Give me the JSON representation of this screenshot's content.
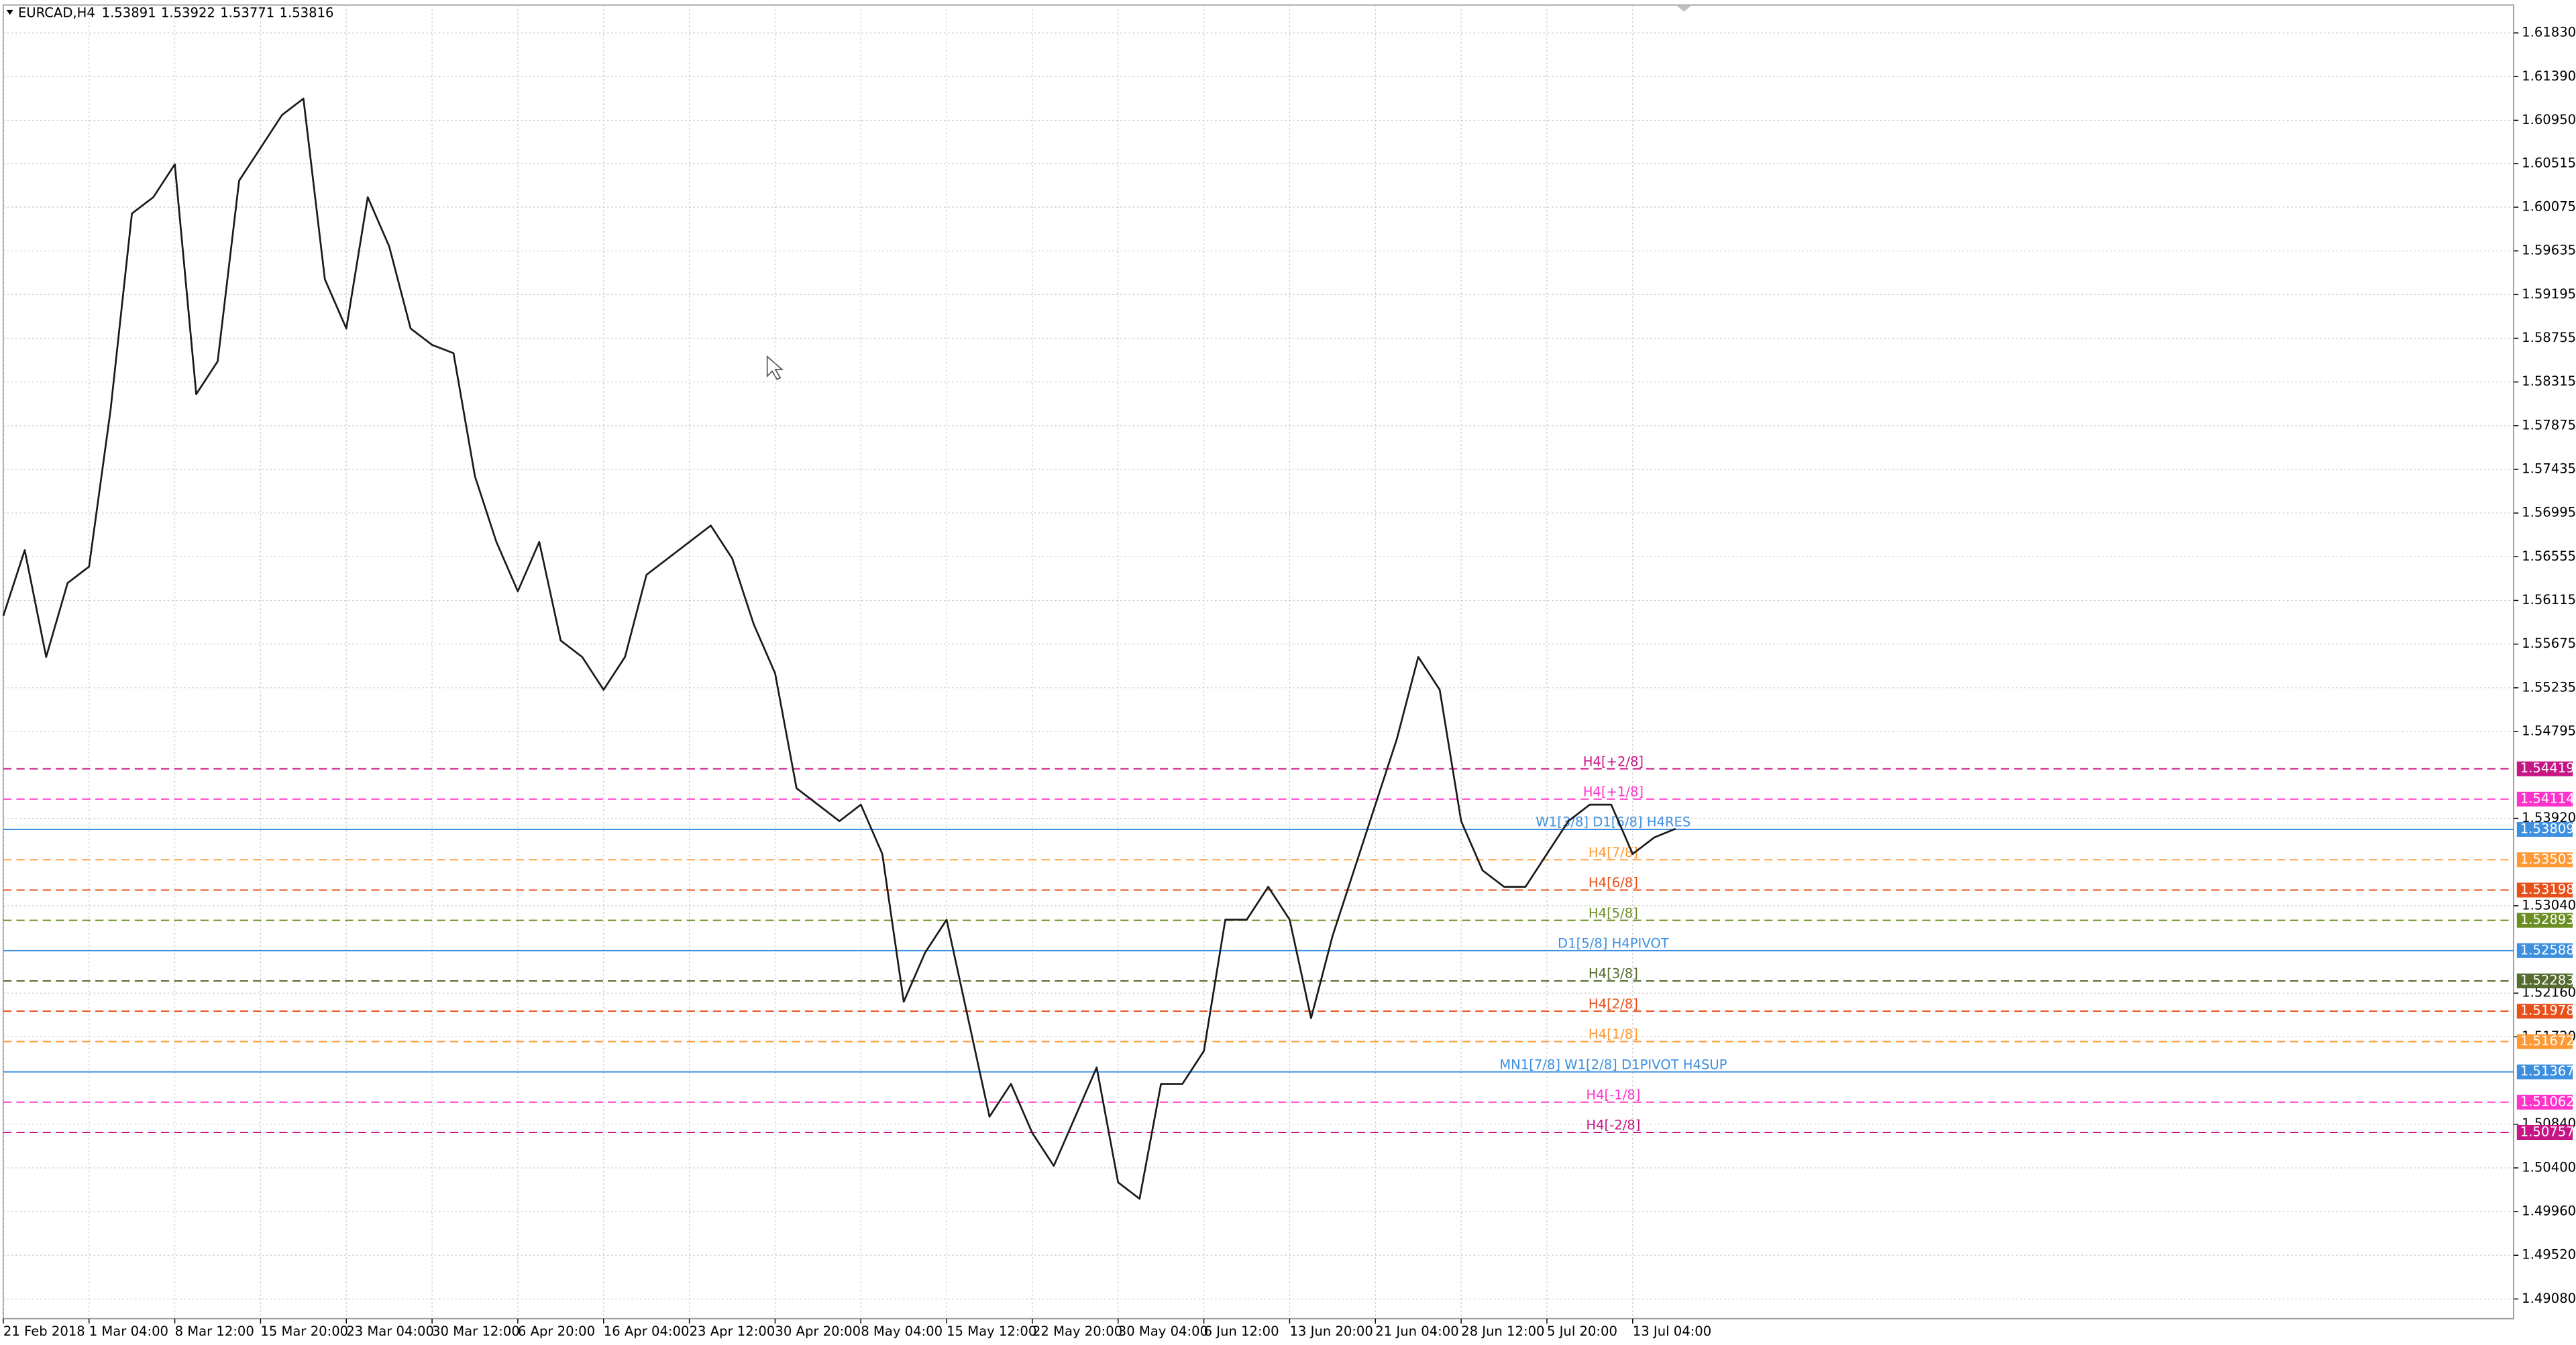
{
  "chart_data": {
    "type": "line",
    "title": "EURCAD,H4",
    "last_bar": {
      "open": 1.53891,
      "high": 1.53922,
      "low": 1.53771,
      "close": 1.53816
    },
    "color": "#1a1a1a",
    "grid": true,
    "categories": [
      "21 Feb 2018",
      null,
      null,
      null,
      "1 Mar 04:00",
      null,
      null,
      null,
      "8 Mar 12:00",
      null,
      null,
      null,
      "15 Mar 20:00",
      null,
      null,
      null,
      "23 Mar 04:00",
      null,
      null,
      null,
      "30 Mar 12:00",
      null,
      null,
      null,
      "6 Apr 20:00",
      null,
      null,
      null,
      "16 Apr 04:00",
      null,
      null,
      null,
      "23 Apr 12:00",
      null,
      null,
      null,
      "30 Apr 20:00",
      null,
      null,
      null,
      "8 May 04:00",
      null,
      null,
      null,
      "15 May 12:00",
      null,
      null,
      null,
      "22 May 20:00",
      null,
      null,
      null,
      "30 May 04:00",
      null,
      null,
      null,
      "6 Jun 12:00",
      null,
      null,
      null,
      "13 Jun 20:00",
      null,
      null,
      null,
      "21 Jun 04:00",
      null,
      null,
      null,
      "28 Jun 12:00",
      null,
      null,
      null,
      "5 Jul 20:00",
      null,
      null,
      null,
      "13 Jul 04:00",
      null,
      null
    ],
    "values": [
      1.55959,
      1.56621,
      1.55546,
      1.5629,
      1.56455,
      1.58026,
      1.60011,
      1.60176,
      1.60507,
      1.58192,
      1.58523,
      1.60342,
      1.60672,
      1.61003,
      1.61169,
      1.59349,
      1.58853,
      1.60176,
      1.5968,
      1.58853,
      1.58688,
      1.58605,
      1.57365,
      1.56704,
      1.56207,
      1.56704,
      1.55711,
      1.55546,
      1.55215,
      1.55546,
      1.56373,
      1.56538,
      1.56704,
      1.56869,
      1.56538,
      1.55877,
      1.55381,
      1.54223,
      1.54058,
      1.53892,
      1.54058,
      1.53562,
      1.52073,
      1.52569,
      1.529,
      1.51908,
      1.50916,
      1.51246,
      1.5075,
      1.5042,
      1.50916,
      1.51412,
      1.50254,
      1.50089,
      1.51246,
      1.51246,
      1.51577,
      1.529,
      1.529,
      1.53231,
      1.529,
      1.51908,
      1.52735,
      1.53396,
      1.54058,
      1.54719,
      1.55546,
      1.55215,
      1.53892,
      1.53396,
      1.53231,
      1.53231,
      1.53562,
      1.53892,
      1.54058,
      1.54058,
      1.53562,
      1.53727,
      1.53816
    ],
    "ylim": [
      1.48882,
      1.62111
    ],
    "yticks": [
      {
        "value": 1.6183,
        "label": "1.61830"
      },
      {
        "value": 1.6139,
        "label": "1.61390"
      },
      {
        "value": 1.6095,
        "label": "1.60950"
      },
      {
        "value": 1.60515,
        "label": "1.60515"
      },
      {
        "value": 1.60075,
        "label": "1.60075"
      },
      {
        "value": 1.59635,
        "label": "1.59635"
      },
      {
        "value": 1.59195,
        "label": "1.59195"
      },
      {
        "value": 1.58755,
        "label": "1.58755"
      },
      {
        "value": 1.58315,
        "label": "1.58315"
      },
      {
        "value": 1.57875,
        "label": "1.57875"
      },
      {
        "value": 1.57435,
        "label": "1.57435"
      },
      {
        "value": 1.56995,
        "label": "1.56995"
      },
      {
        "value": 1.56555,
        "label": "1.56555"
      },
      {
        "value": 1.56115,
        "label": "1.56115"
      },
      {
        "value": 1.55675,
        "label": "1.55675"
      },
      {
        "value": 1.55235,
        "label": "1.55235"
      },
      {
        "value": 1.54795,
        "label": "1.54795"
      },
      {
        "value": 1.5392,
        "label": "1.53920"
      },
      {
        "value": 1.5304,
        "label": "1.53040"
      },
      {
        "value": 1.5216,
        "label": "1.52160"
      },
      {
        "value": 1.5172,
        "label": "1.51720"
      },
      {
        "value": 1.5084,
        "label": "1.50840"
      },
      {
        "value": 1.504,
        "label": "1.50400"
      },
      {
        "value": 1.4996,
        "label": "1.49960"
      },
      {
        "value": 1.4952,
        "label": "1.49520"
      },
      {
        "value": 1.4908,
        "label": "1.49080"
      }
    ],
    "levels": [
      {
        "value": 1.54419,
        "label": "H4[+2/8]",
        "color": "#c71585",
        "style": "dashed"
      },
      {
        "value": 1.54114,
        "label": "H4[+1/8]",
        "color": "#ff33cc",
        "style": "dashed"
      },
      {
        "value": 1.53809,
        "label": "W1[3/8] D1[6/8] H4RES",
        "color": "#3d8fe0",
        "style": "solid"
      },
      {
        "value": 1.53503,
        "label": "H4[7/8]",
        "color": "#ff9933",
        "style": "dashed"
      },
      {
        "value": 1.53198,
        "label": "H4[6/8]",
        "color": "#e8501a",
        "style": "dashed"
      },
      {
        "value": 1.52893,
        "label": "H4[5/8]",
        "color": "#6b8e23",
        "style": "dashed"
      },
      {
        "value": 1.52588,
        "label": "D1[5/8] H4PIVOT",
        "color": "#3d8fe0",
        "style": "solid"
      },
      {
        "value": 1.52283,
        "label": "H4[3/8]",
        "color": "#556b2f",
        "style": "dashed"
      },
      {
        "value": 1.51978,
        "label": "H4[2/8]",
        "color": "#e8501a",
        "style": "dashed"
      },
      {
        "value": 1.51672,
        "label": "H4[1/8]",
        "color": "#ff9933",
        "style": "dashed"
      },
      {
        "value": 1.51367,
        "label": "MN1[7/8] W1[2/8] D1PIVOT H4SUP",
        "color": "#3d8fe0",
        "style": "solid"
      },
      {
        "value": 1.51062,
        "label": "H4[-1/8]",
        "color": "#ff33cc",
        "style": "dashed"
      },
      {
        "value": 1.50757,
        "label": "H4[-2/8]",
        "color": "#c71585",
        "style": "dashed"
      }
    ]
  }
}
